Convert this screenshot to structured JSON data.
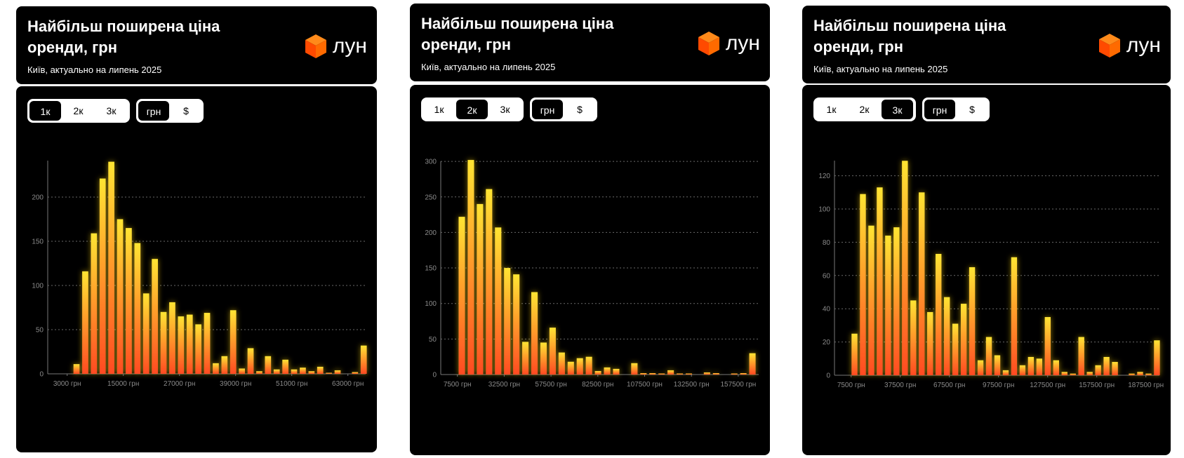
{
  "colors": {
    "bar_top": "#ffe433",
    "bar_bottom": "#ff4a22",
    "glow": "#ffd21a",
    "grid": "#6a6a6a",
    "axis": "#777777",
    "logo_orange": "#ff5a00"
  },
  "cards": [
    {
      "title": "Найбільш поширена ціна оренди, грн",
      "subtitle": "Київ, актуально на липень 2025",
      "logo_text": "лун",
      "rooms_toggle": [
        {
          "label": "1к",
          "active": true
        },
        {
          "label": "2к",
          "active": false
        },
        {
          "label": "3к",
          "active": false
        }
      ],
      "currency_toggle": [
        {
          "label": "грн",
          "active": true
        },
        {
          "label": "$",
          "active": false
        }
      ]
    },
    {
      "title": "Найбільш поширена ціна оренди, грн",
      "subtitle": "Київ, актуально на липень 2025",
      "logo_text": "лун",
      "rooms_toggle": [
        {
          "label": "1к",
          "active": false
        },
        {
          "label": "2к",
          "active": true
        },
        {
          "label": "3к",
          "active": false
        }
      ],
      "currency_toggle": [
        {
          "label": "грн",
          "active": true
        },
        {
          "label": "$",
          "active": false
        }
      ]
    },
    {
      "title": "Найбільш поширена ціна оренди, грн",
      "subtitle": "Київ, актуально на липень 2025",
      "logo_text": "лун",
      "rooms_toggle": [
        {
          "label": "1к",
          "active": false
        },
        {
          "label": "2к",
          "active": false
        },
        {
          "label": "3к",
          "active": true
        }
      ],
      "currency_toggle": [
        {
          "label": "грн",
          "active": true
        },
        {
          "label": "$",
          "active": false
        }
      ]
    }
  ],
  "chart_data": [
    {
      "type": "bar",
      "grid": true,
      "bin_center_start": 5000,
      "bin_width": 1860,
      "values": [
        11,
        116,
        159,
        221,
        240,
        175,
        165,
        148,
        91,
        130,
        70,
        81,
        65,
        67,
        56,
        69,
        12,
        20,
        72,
        6,
        29,
        3,
        20,
        5,
        16,
        5,
        7,
        3,
        8,
        1,
        4,
        0,
        2,
        32
      ],
      "y_ticks": [
        0,
        50,
        100,
        150,
        200
      ],
      "x_ticks": [
        3000,
        15000,
        27000,
        39000,
        51000,
        63000
      ],
      "x_tick_labels": [
        "3000 грн",
        "15000 грн",
        "27000 грн",
        "39000 грн",
        "51000 грн",
        "63000 грн"
      ]
    },
    {
      "type": "bar",
      "grid": true,
      "bin_center_start": 9860,
      "bin_width": 4850,
      "values": [
        222,
        302,
        240,
        261,
        207,
        150,
        141,
        46,
        116,
        45,
        66,
        31,
        18,
        23,
        25,
        5,
        10,
        8,
        0,
        16,
        2,
        2,
        1,
        6,
        1,
        1,
        0,
        3,
        2,
        0,
        1,
        2,
        30
      ],
      "y_ticks": [
        0,
        50,
        100,
        150,
        200,
        250,
        300
      ],
      "x_ticks": [
        7500,
        32500,
        57500,
        82500,
        107500,
        132500,
        157500
      ],
      "x_tick_labels": [
        "7500 грн",
        "32500 грн",
        "57500 грн",
        "82500 грн",
        "107500 грн",
        "132500 грн",
        "157500 грн"
      ]
    },
    {
      "type": "bar",
      "grid": true,
      "bin_center_start": 9560,
      "bin_width": 5130,
      "values": [
        25,
        109,
        90,
        113,
        84,
        89,
        129,
        45,
        110,
        38,
        73,
        47,
        31,
        43,
        65,
        9,
        23,
        12,
        3,
        71,
        6,
        11,
        10,
        35,
        9,
        2,
        1,
        23,
        2,
        6,
        11,
        8,
        0,
        1,
        2,
        1,
        21
      ],
      "y_ticks": [
        0,
        20,
        40,
        60,
        80,
        100,
        120
      ],
      "x_ticks": [
        7500,
        37500,
        67500,
        97500,
        127500,
        157500,
        187500
      ],
      "x_tick_labels": [
        "7500 грн",
        "37500 грн",
        "67500 грн",
        "97500 грн",
        "127500 грн",
        "157500 грн",
        "187500 грн"
      ]
    }
  ]
}
